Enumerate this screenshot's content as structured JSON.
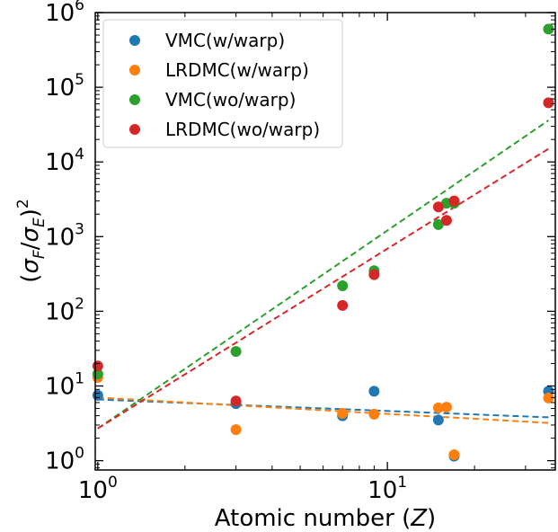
{
  "chart_data": {
    "type": "scatter",
    "xscale": "log",
    "yscale": "log",
    "xlim": [
      0.98,
      38
    ],
    "ylim": [
      0.75,
      1000000
    ],
    "xlabel_main": "Atomic number (",
    "xlabel_var": "Z",
    "xlabel_close": ")",
    "ylabel_sigma": "σ",
    "ylabel_sub_num": "F",
    "ylabel_sub_den": "E",
    "ylabel_exp": "2",
    "legend_position": "upper-left",
    "grid": false,
    "xticks": [
      {
        "value": 1,
        "base": "10",
        "exp": "0"
      },
      {
        "value": 10,
        "base": "10",
        "exp": "1"
      }
    ],
    "yticks": [
      {
        "value": 1,
        "base": "10",
        "exp": "0"
      },
      {
        "value": 10,
        "base": "10",
        "exp": "1"
      },
      {
        "value": 100,
        "base": "10",
        "exp": "2"
      },
      {
        "value": 1000,
        "base": "10",
        "exp": "3"
      },
      {
        "value": 10000,
        "base": "10",
        "exp": "4"
      },
      {
        "value": 100000,
        "base": "10",
        "exp": "5"
      },
      {
        "value": 1000000,
        "base": "10",
        "exp": "6"
      }
    ],
    "series": [
      {
        "name": "VMC(w/warp)",
        "color": "#1f77b4",
        "points": [
          [
            1,
            7.5
          ],
          [
            3,
            5.8
          ],
          [
            7,
            4.0
          ],
          [
            9,
            8.5
          ],
          [
            15,
            3.5
          ],
          [
            17,
            1.15
          ],
          [
            36,
            8.5
          ]
        ],
        "fit": [
          [
            1,
            6.6
          ],
          [
            36,
            3.8
          ]
        ]
      },
      {
        "name": "LRDMC(w/warp)",
        "color": "#ff7f0e",
        "points": [
          [
            1,
            13
          ],
          [
            3,
            2.6
          ],
          [
            7,
            4.3
          ],
          [
            9,
            4.2
          ],
          [
            15,
            5.1
          ],
          [
            16,
            5.2
          ],
          [
            17,
            1.2
          ],
          [
            36,
            6.9
          ]
        ],
        "fit": [
          [
            1,
            7.0
          ],
          [
            36,
            3.2
          ]
        ]
      },
      {
        "name": "VMC(wo/warp)",
        "color": "#2ca02c",
        "points": [
          [
            1,
            14.5
          ],
          [
            3,
            29
          ],
          [
            7,
            220
          ],
          [
            9,
            350
          ],
          [
            15,
            1450
          ],
          [
            16,
            2800
          ],
          [
            17,
            2800
          ],
          [
            36,
            600000
          ]
        ],
        "fit": [
          [
            1,
            2.7
          ],
          [
            36,
            36000
          ]
        ]
      },
      {
        "name": "LRDMC(wo/warp)",
        "color": "#d62728",
        "points": [
          [
            1,
            18.5
          ],
          [
            3,
            6.3
          ],
          [
            7,
            120
          ],
          [
            9,
            310
          ],
          [
            15,
            2500
          ],
          [
            16,
            1650
          ],
          [
            17,
            3000
          ],
          [
            36,
            62000
          ]
        ],
        "fit": [
          [
            1,
            2.7
          ],
          [
            36,
            15000
          ]
        ]
      }
    ]
  }
}
